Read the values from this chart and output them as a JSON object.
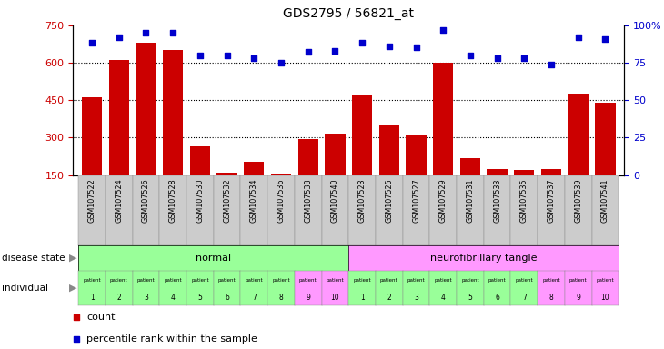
{
  "title": "GDS2795 / 56821_at",
  "samples": [
    "GSM107522",
    "GSM107524",
    "GSM107526",
    "GSM107528",
    "GSM107530",
    "GSM107532",
    "GSM107534",
    "GSM107536",
    "GSM107538",
    "GSM107540",
    "GSM107523",
    "GSM107525",
    "GSM107527",
    "GSM107529",
    "GSM107531",
    "GSM107533",
    "GSM107535",
    "GSM107537",
    "GSM107539",
    "GSM107541"
  ],
  "counts": [
    460,
    610,
    680,
    650,
    265,
    160,
    205,
    155,
    295,
    315,
    470,
    350,
    310,
    600,
    220,
    175,
    170,
    175,
    475,
    440
  ],
  "percentiles": [
    88,
    92,
    95,
    95,
    80,
    80,
    78,
    75,
    82,
    83,
    88,
    86,
    85,
    97,
    80,
    78,
    78,
    74,
    92,
    91
  ],
  "ylim_left": [
    150,
    750
  ],
  "ylim_right": [
    0,
    100
  ],
  "yticks_left": [
    150,
    300,
    450,
    600,
    750
  ],
  "yticks_right": [
    0,
    25,
    50,
    75,
    100
  ],
  "bar_color": "#cc0000",
  "dot_color": "#0000cc",
  "normal_color": "#99ff99",
  "tangle_color": "#ff99ff",
  "xtick_bg_color": "#cccccc",
  "normal_label": "normal",
  "tangle_label": "neurofibrillary tangle",
  "bg_color": "#ffffff",
  "tick_label_color_left": "#cc0000",
  "tick_label_color_right": "#0000cc",
  "grid_values": [
    300,
    450,
    600
  ],
  "bar_width": 0.75,
  "legend_items": [
    "count",
    "percentile rank within the sample"
  ],
  "normal_individual_colors": [
    "#99ff99",
    "#99ff99",
    "#99ff99",
    "#99ff99",
    "#99ff99",
    "#99ff99",
    "#99ff99",
    "#99ff99",
    "#ff99ff",
    "#ff99ff"
  ],
  "tangle_individual_colors": [
    "#99ff99",
    "#99ff99",
    "#99ff99",
    "#99ff99",
    "#99ff99",
    "#99ff99",
    "#99ff99",
    "#ff99ff",
    "#ff99ff",
    "#ff99ff"
  ]
}
